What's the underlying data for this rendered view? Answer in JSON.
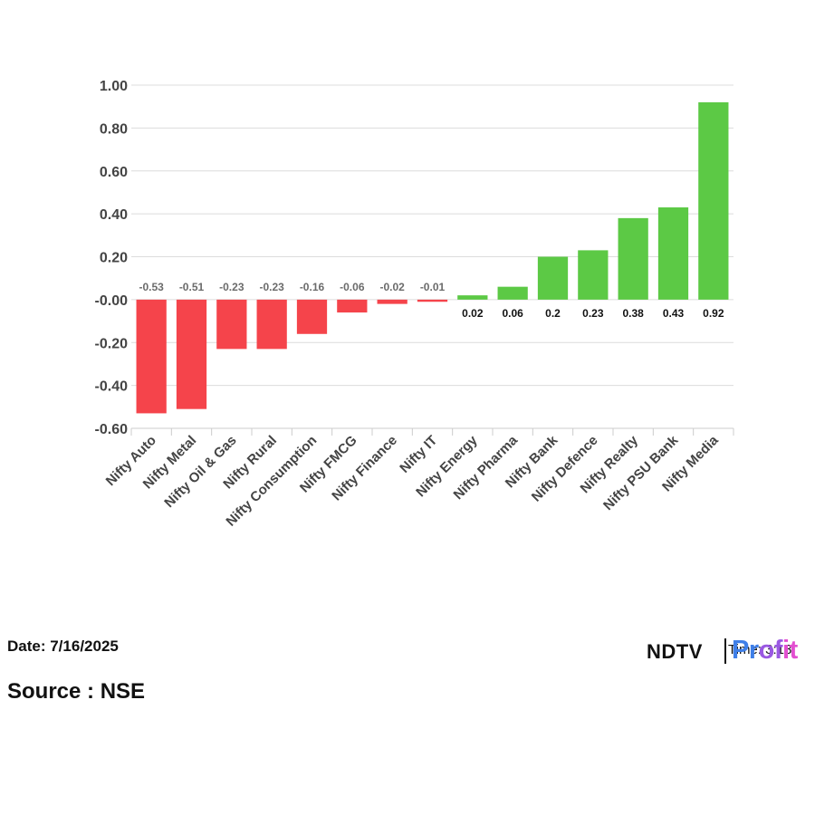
{
  "chart_data": {
    "type": "bar",
    "categories": [
      "Nifty Auto",
      "Nifty Metal",
      "Nifty Oil & Gas",
      "Nifty Rural",
      "Nifty Consumption",
      "Nifty FMCG",
      "Nifty Finance",
      "Nifty IT",
      "Nifty Energy",
      "Nifty Pharma",
      "Nifty Bank",
      "Nifty Defence",
      "Nifty Realty",
      "Nifty PSU Bank",
      "Nifty Media"
    ],
    "values": [
      -0.53,
      -0.51,
      -0.23,
      -0.23,
      -0.16,
      -0.06,
      -0.02,
      -0.01,
      0.02,
      0.06,
      0.2,
      0.23,
      0.38,
      0.43,
      0.92
    ],
    "data_labels": [
      "-0.53",
      "-0.51",
      "-0.23",
      "-0.23",
      "-0.16",
      "-0.06",
      "-0.02",
      "-0.01",
      "0.02",
      "0.06",
      "0.2",
      "0.23",
      "0.38",
      "0.43",
      "0.92"
    ],
    "yticks": [
      "1.00",
      "0.80",
      "0.60",
      "0.40",
      "0.20",
      "-0.00",
      "-0.20",
      "-0.40",
      "-0.60"
    ],
    "ylim": [
      -0.6,
      1.0
    ],
    "grid": true,
    "colors": {
      "negative": "#f5444b",
      "positive": "#5cc945"
    }
  },
  "footer": {
    "date": "Date: 7/16/2025",
    "source": "Source : NSE",
    "logo_brand": "NDTV",
    "logo_time": "Time: 3:18",
    "logo_profit": "Profit"
  }
}
